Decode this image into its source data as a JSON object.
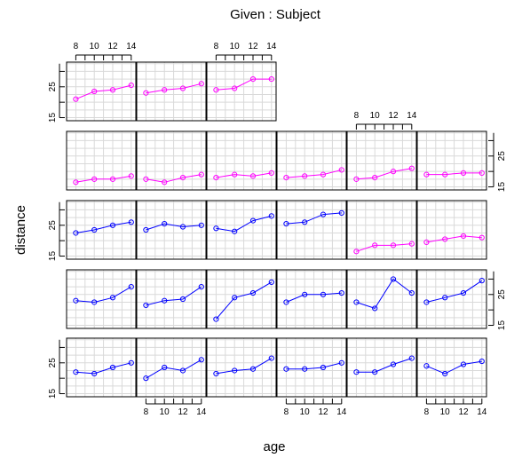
{
  "chart_data": {
    "type": "line",
    "title": "Given : Subject",
    "xlabel": "age",
    "ylabel": "distance",
    "x_ticks": [
      8,
      10,
      12,
      14
    ],
    "y_ticks": [
      15,
      25
    ],
    "xlim": [
      7,
      14.5
    ],
    "ylim": [
      14,
      33
    ],
    "grid": true,
    "colors": {
      "female": "#ff00ff",
      "male": "#0000ff",
      "grid": "#d9d9d9",
      "frame": "#000000"
    },
    "panels": [
      {
        "row": 0,
        "col": 0,
        "color": "female",
        "x": [
          8,
          10,
          12,
          14
        ],
        "y": [
          21.0,
          23.5,
          24.0,
          25.5
        ]
      },
      {
        "row": 0,
        "col": 1,
        "color": "female",
        "x": [
          8,
          10,
          12,
          14
        ],
        "y": [
          23.0,
          24.0,
          24.5,
          26.0
        ]
      },
      {
        "row": 0,
        "col": 2,
        "color": "female",
        "x": [
          8,
          10,
          12,
          14
        ],
        "y": [
          24.0,
          24.5,
          27.5,
          27.5
        ]
      },
      {
        "row": 1,
        "col": 0,
        "color": "female",
        "x": [
          8,
          10,
          12,
          14
        ],
        "y": [
          16.5,
          17.5,
          17.5,
          18.5
        ]
      },
      {
        "row": 1,
        "col": 1,
        "color": "female",
        "x": [
          8,
          10,
          12,
          14
        ],
        "y": [
          17.5,
          16.5,
          18.0,
          19.0
        ]
      },
      {
        "row": 1,
        "col": 2,
        "color": "female",
        "x": [
          8,
          10,
          12,
          14
        ],
        "y": [
          18.0,
          19.0,
          18.5,
          19.5
        ]
      },
      {
        "row": 1,
        "col": 3,
        "color": "female",
        "x": [
          8,
          10,
          12,
          14
        ],
        "y": [
          18.0,
          18.5,
          19.0,
          20.5
        ]
      },
      {
        "row": 1,
        "col": 4,
        "color": "female",
        "x": [
          8,
          10,
          12,
          14
        ],
        "y": [
          17.5,
          18.0,
          20.0,
          21.0
        ]
      },
      {
        "row": 1,
        "col": 5,
        "color": "female",
        "x": [
          8,
          10,
          12,
          14
        ],
        "y": [
          19.0,
          19.0,
          19.5,
          19.5
        ]
      },
      {
        "row": 2,
        "col": 0,
        "color": "male",
        "x": [
          8,
          10,
          12,
          14
        ],
        "y": [
          22.5,
          23.5,
          25.0,
          26.0
        ]
      },
      {
        "row": 2,
        "col": 1,
        "color": "male",
        "x": [
          8,
          10,
          12,
          14
        ],
        "y": [
          23.5,
          25.5,
          24.5,
          25.0
        ]
      },
      {
        "row": 2,
        "col": 2,
        "color": "male",
        "x": [
          8,
          10,
          12,
          14
        ],
        "y": [
          24.0,
          23.0,
          26.5,
          28.0
        ]
      },
      {
        "row": 2,
        "col": 3,
        "color": "male",
        "x": [
          8,
          10,
          12,
          14
        ],
        "y": [
          25.5,
          26.0,
          28.5,
          29.0
        ]
      },
      {
        "row": 2,
        "col": 4,
        "color": "female",
        "x": [
          8,
          10,
          12,
          14
        ],
        "y": [
          16.5,
          18.5,
          18.5,
          19.0
        ]
      },
      {
        "row": 2,
        "col": 5,
        "color": "female",
        "x": [
          8,
          10,
          12,
          14
        ],
        "y": [
          19.5,
          20.5,
          21.5,
          21.0
        ]
      },
      {
        "row": 3,
        "col": 0,
        "color": "male",
        "x": [
          8,
          10,
          12,
          14
        ],
        "y": [
          23.0,
          22.5,
          24.0,
          27.5
        ]
      },
      {
        "row": 3,
        "col": 1,
        "color": "male",
        "x": [
          8,
          10,
          12,
          14
        ],
        "y": [
          21.5,
          23.0,
          23.5,
          27.5
        ]
      },
      {
        "row": 3,
        "col": 2,
        "color": "male",
        "x": [
          8,
          10,
          12,
          14
        ],
        "y": [
          17.0,
          24.0,
          25.5,
          29.0
        ]
      },
      {
        "row": 3,
        "col": 3,
        "color": "male",
        "x": [
          8,
          10,
          12,
          14
        ],
        "y": [
          22.5,
          25.0,
          25.0,
          25.5
        ]
      },
      {
        "row": 3,
        "col": 4,
        "color": "male",
        "x": [
          8,
          10,
          12,
          14
        ],
        "y": [
          22.5,
          20.5,
          30.0,
          25.5
        ]
      },
      {
        "row": 3,
        "col": 5,
        "color": "male",
        "x": [
          8,
          10,
          12,
          14
        ],
        "y": [
          22.5,
          24.0,
          25.5,
          29.5
        ]
      },
      {
        "row": 4,
        "col": 0,
        "color": "male",
        "x": [
          8,
          10,
          12,
          14
        ],
        "y": [
          22.0,
          21.5,
          23.5,
          25.0
        ]
      },
      {
        "row": 4,
        "col": 1,
        "color": "male",
        "x": [
          8,
          10,
          12,
          14
        ],
        "y": [
          20.0,
          23.5,
          22.5,
          26.0
        ]
      },
      {
        "row": 4,
        "col": 2,
        "color": "male",
        "x": [
          8,
          10,
          12,
          14
        ],
        "y": [
          21.5,
          22.5,
          23.0,
          26.5
        ]
      },
      {
        "row": 4,
        "col": 3,
        "color": "male",
        "x": [
          8,
          10,
          12,
          14
        ],
        "y": [
          23.0,
          23.0,
          23.5,
          25.0
        ]
      },
      {
        "row": 4,
        "col": 4,
        "color": "male",
        "x": [
          8,
          10,
          12,
          14
        ],
        "y": [
          22.0,
          22.0,
          24.5,
          26.5
        ]
      },
      {
        "row": 4,
        "col": 5,
        "color": "male",
        "x": [
          8,
          10,
          12,
          14
        ],
        "y": [
          24.0,
          21.5,
          24.5,
          25.5
        ]
      }
    ]
  }
}
